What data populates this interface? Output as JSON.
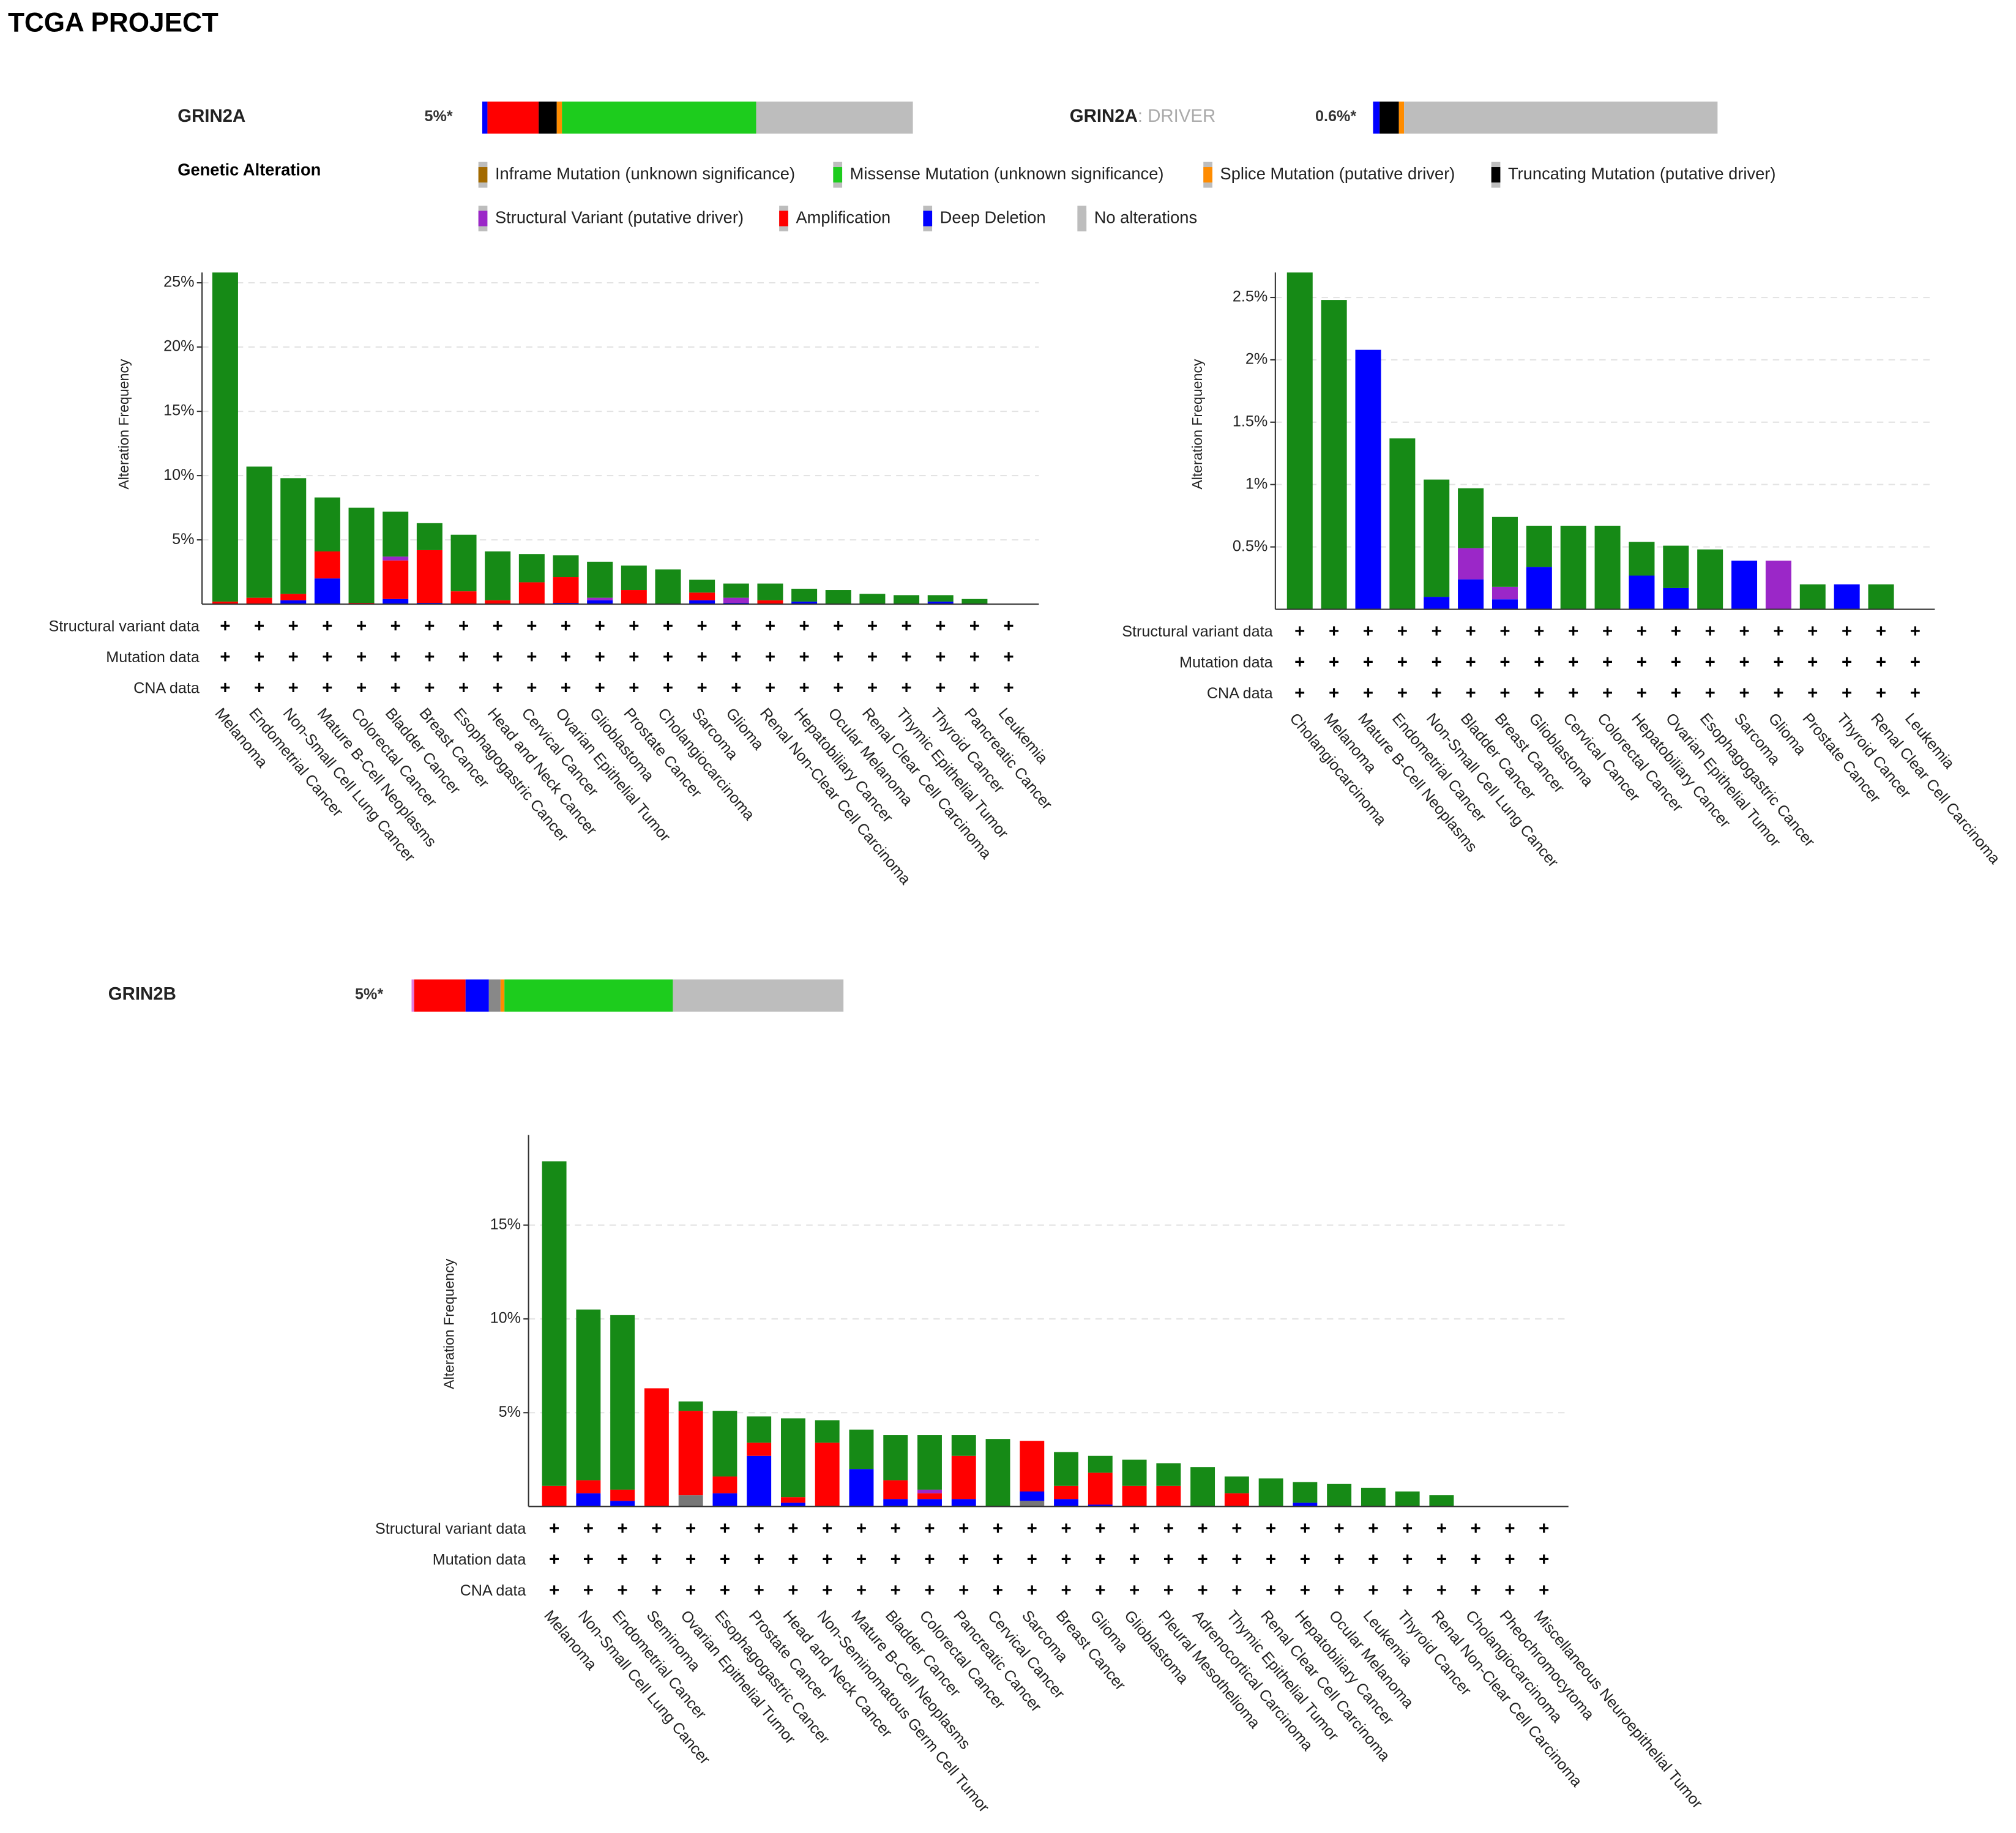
{
  "title": "TCGA PROJECT",
  "tracks": [
    {
      "gene": "GRIN2A",
      "percent_label": "5%*",
      "segments": [
        {
          "color": "#0000ff",
          "value": 1.2
        },
        {
          "color": "#ff0000",
          "value": 11.9
        },
        {
          "color": "#000000",
          "value": 4.2
        },
        {
          "color": "#ff8c00",
          "value": 1.2
        },
        {
          "color": "#1dcc1d",
          "value": 45.1
        },
        {
          "color": "#bdbdbd",
          "value": 36.4
        }
      ]
    },
    {
      "gene": "GRIN2A",
      "suffix": ": DRIVER",
      "percent_label": "0.6%*",
      "segments": [
        {
          "color": "#0000ff",
          "value": 1.9
        },
        {
          "color": "#000000",
          "value": 5.6
        },
        {
          "color": "#ff8c00",
          "value": 1.5
        },
        {
          "color": "#bdbdbd",
          "value": 91.0
        }
      ]
    },
    {
      "gene": "GRIN2B",
      "percent_label": "5%*",
      "segments": [
        {
          "color": "#e07adf",
          "value": 0.6
        },
        {
          "color": "#ff0000",
          "value": 11.9
        },
        {
          "color": "#0000ff",
          "value": 5.4
        },
        {
          "color": "#888888",
          "value": 2.7
        },
        {
          "color": "#ff8c00",
          "value": 0.9
        },
        {
          "color": "#1dcc1d",
          "value": 39.0
        },
        {
          "color": "#bdbdbd",
          "value": 39.5
        }
      ]
    }
  ],
  "legend": {
    "title": "Genetic Alteration",
    "items": [
      {
        "label": "Inframe Mutation (unknown significance)",
        "color": "#a36a00"
      },
      {
        "label": "Missense Mutation (unknown significance)",
        "color": "#1dcc1d"
      },
      {
        "label": "Splice Mutation (putative driver)",
        "color": "#ff8c00"
      },
      {
        "label": "Truncating Mutation (putative driver)",
        "color": "#000000"
      },
      {
        "label": "Structural Variant (putative driver)",
        "color": "#9b27c8"
      },
      {
        "label": "Amplification",
        "color": "#ff0000"
      },
      {
        "label": "Deep Deletion",
        "color": "#0000ff"
      },
      {
        "label": "No alterations",
        "color": "#bdbdbd"
      }
    ]
  },
  "chart_data": [
    {
      "type": "bar",
      "stacked": true,
      "ylabel": "Alteration Frequency",
      "grid": true,
      "categories": [
        "Melanoma",
        "Endometrial Cancer",
        "Non-Small Cell Lung Cancer",
        "Mature B-Cell Neoplasms",
        "Colorectal Cancer",
        "Bladder Cancer",
        "Breast Cancer",
        "Esophagogastric Cancer",
        "Head and Neck Cancer",
        "Cervical Cancer",
        "Ovarian Epithelial Tumor",
        "Glioblastoma",
        "Prostate Cancer",
        "Cholangiocarcinoma",
        "Sarcoma",
        "Glioma",
        "Renal Non-Clear Cell Carcinoma",
        "Hepatobiliary Cancer",
        "Ocular Melanoma",
        "Renal Clear Cell Carcinoma",
        "Thymic Epithelial Tumor",
        "Thyroid Cancer",
        "Pancreatic Cancer",
        "Leukemia"
      ],
      "series": [
        {
          "color": "#777777",
          "values": [
            0,
            0,
            0,
            0,
            0,
            0,
            0,
            0,
            0,
            0,
            0,
            0,
            0,
            0,
            0,
            0,
            0,
            0,
            0,
            0,
            0,
            0,
            0,
            0
          ]
        },
        {
          "color": "#0000ff",
          "values": [
            0,
            0,
            0.3,
            2.0,
            0,
            0.4,
            0.1,
            0,
            0,
            0,
            0.1,
            0.3,
            0,
            0,
            0.3,
            0.1,
            0,
            0.2,
            0,
            0,
            0,
            0.2,
            0,
            0
          ]
        },
        {
          "color": "#ff0000",
          "values": [
            0.2,
            0.5,
            0.5,
            2.1,
            0.1,
            3.0,
            4.1,
            1.0,
            0.3,
            1.7,
            2.0,
            0,
            1.1,
            0,
            0.6,
            0,
            0.3,
            0,
            0,
            0,
            0,
            0,
            0,
            0
          ]
        },
        {
          "color": "#9b27c8",
          "values": [
            0,
            0,
            0,
            0,
            0,
            0.3,
            0,
            0,
            0,
            0,
            0,
            0.2,
            0,
            0,
            0,
            0.4,
            0,
            0,
            0,
            0,
            0,
            0,
            0,
            0
          ]
        },
        {
          "color": "#168a16",
          "values": [
            25.6,
            10.2,
            9.0,
            4.2,
            7.4,
            3.5,
            2.1,
            4.4,
            3.8,
            2.2,
            1.7,
            2.8,
            1.9,
            2.7,
            1.0,
            1.1,
            1.3,
            1.0,
            1.1,
            0.8,
            0.7,
            0.5,
            0.4,
            0
          ]
        }
      ],
      "ylim": [
        0,
        25.8
      ],
      "yticks": [
        {
          "value": 5,
          "label": "5%"
        },
        {
          "value": 10,
          "label": "10%"
        },
        {
          "value": 15,
          "label": "15%"
        },
        {
          "value": 20,
          "label": "20%"
        },
        {
          "value": 25,
          "label": "25%"
        }
      ],
      "row_labels": [
        "Structural variant data",
        "Mutation data",
        "CNA data"
      ],
      "row_mark": "+"
    },
    {
      "type": "bar",
      "stacked": true,
      "ylabel": "Alteration Frequency",
      "grid": true,
      "categories": [
        "Cholangiocarcinoma",
        "Melanoma",
        "Mature B-Cell Neoplasms",
        "Endometrial Cancer",
        "Non-Small Cell Lung Cancer",
        "Bladder Cancer",
        "Breast Cancer",
        "Glioblastoma",
        "Cervical Cancer",
        "Colorectal Cancer",
        "Hepatobiliary Cancer",
        "Ovarian Epithelial Tumor",
        "Esophagogastric Cancer",
        "Sarcoma",
        "Glioma",
        "Prostate Cancer",
        "Thyroid Cancer",
        "Renal Clear Cell Carcinoma",
        "Leukemia"
      ],
      "series": [
        {
          "color": "#777777",
          "values": [
            0,
            0,
            0,
            0,
            0,
            0,
            0,
            0,
            0,
            0,
            0,
            0,
            0,
            0,
            0,
            0,
            0,
            0,
            0
          ]
        },
        {
          "color": "#0000ff",
          "values": [
            0,
            0,
            2.08,
            0,
            0.1,
            0.24,
            0.08,
            0.34,
            0,
            0,
            0.27,
            0.17,
            0,
            0.39,
            0,
            0,
            0.2,
            0,
            0
          ]
        },
        {
          "color": "#ff0000",
          "values": [
            0,
            0,
            0,
            0,
            0,
            0,
            0,
            0,
            0,
            0,
            0,
            0,
            0,
            0,
            0,
            0,
            0,
            0,
            0
          ]
        },
        {
          "color": "#9b27c8",
          "values": [
            0,
            0,
            0,
            0,
            0,
            0.25,
            0.1,
            0,
            0,
            0,
            0,
            0,
            0,
            0,
            0.39,
            0,
            0,
            0,
            0
          ]
        },
        {
          "color": "#168a16",
          "values": [
            2.7,
            2.48,
            0,
            1.37,
            0.94,
            0.48,
            0.56,
            0.33,
            0.67,
            0.67,
            0.27,
            0.34,
            0.48,
            0,
            0,
            0.2,
            0,
            0.2,
            0
          ]
        }
      ],
      "ylim": [
        0,
        2.7
      ],
      "yticks": [
        {
          "value": 0.5,
          "label": "0.5%"
        },
        {
          "value": 1,
          "label": "1%"
        },
        {
          "value": 1.5,
          "label": "1.5%"
        },
        {
          "value": 2,
          "label": "2%"
        },
        {
          "value": 2.5,
          "label": "2.5%"
        }
      ],
      "row_labels": [
        "Structural variant data",
        "Mutation data",
        "CNA data"
      ],
      "row_mark": "+"
    },
    {
      "type": "bar",
      "stacked": true,
      "ylabel": "Alteration Frequency",
      "grid": true,
      "categories": [
        "Melanoma",
        "Non-Small Cell Lung Cancer",
        "Endometrial Cancer",
        "Seminoma",
        "Ovarian Epithelial Tumor",
        "Esophagogastric Cancer",
        "Prostate Cancer",
        "Head and Neck Cancer",
        "Non-Seminomatous Germ Cell Tumor",
        "Mature B-Cell Neoplasms",
        "Bladder Cancer",
        "Colorectal Cancer",
        "Pancreatic Cancer",
        "Cervical Cancer",
        "Sarcoma",
        "Breast Cancer",
        "Glioma",
        "Glioblastoma",
        "Pleural Mesothelioma",
        "Adrenocortical Carcinoma",
        "Thymic Epithelial Tumor",
        "Renal Clear Cell Carcinoma",
        "Hepatobiliary Cancer",
        "Ocular Melanoma",
        "Leukemia",
        "Thyroid Cancer",
        "Renal Non-Clear Cell Carcinoma",
        "Cholangiocarcinoma",
        "Pheochromocytoma",
        "Miscellaneous Neuroepithelial Tumor"
      ],
      "series": [
        {
          "color": "#777777",
          "values": [
            0,
            0,
            0,
            0,
            0.6,
            0,
            0,
            0,
            0,
            0,
            0,
            0,
            0,
            0,
            0.3,
            0,
            0,
            0,
            0,
            0,
            0,
            0,
            0,
            0,
            0,
            0,
            0,
            0,
            0,
            0
          ]
        },
        {
          "color": "#0000ff",
          "values": [
            0,
            0.7,
            0.3,
            0,
            0,
            0.7,
            2.7,
            0.2,
            0,
            2.0,
            0.4,
            0.4,
            0.4,
            0,
            0.5,
            0.4,
            0.1,
            0,
            0,
            0,
            0,
            0,
            0.2,
            0,
            0,
            0,
            0,
            0,
            0,
            0
          ]
        },
        {
          "color": "#ff0000",
          "values": [
            1.1,
            0.7,
            0.6,
            6.3,
            4.5,
            0.9,
            0.7,
            0.3,
            3.4,
            0,
            1.0,
            0.3,
            2.3,
            0,
            2.7,
            0.7,
            1.7,
            1.1,
            1.1,
            0,
            0.7,
            0,
            0,
            0,
            0,
            0,
            0,
            0,
            0,
            0
          ]
        },
        {
          "color": "#9b27c8",
          "values": [
            0,
            0,
            0,
            0,
            0,
            0,
            0,
            0,
            0,
            0,
            0,
            0.2,
            0,
            0,
            0,
            0,
            0,
            0,
            0,
            0,
            0,
            0,
            0,
            0,
            0,
            0,
            0,
            0,
            0,
            0
          ]
        },
        {
          "color": "#168a16",
          "values": [
            17.3,
            9.1,
            9.3,
            0,
            0.5,
            3.5,
            1.4,
            4.2,
            1.2,
            2.1,
            2.4,
            2.9,
            1.1,
            3.6,
            0,
            1.8,
            0.9,
            1.4,
            1.2,
            2.1,
            0.9,
            1.5,
            1.1,
            1.2,
            1.0,
            0.8,
            0.6,
            0,
            0,
            0
          ]
        }
      ],
      "ylim": [
        0,
        19.8
      ],
      "yticks": [
        {
          "value": 5,
          "label": "5%"
        },
        {
          "value": 10,
          "label": "10%"
        },
        {
          "value": 15,
          "label": "15%"
        }
      ],
      "row_labels": [
        "Structural variant data",
        "Mutation data",
        "CNA data"
      ],
      "row_mark": "+"
    }
  ]
}
